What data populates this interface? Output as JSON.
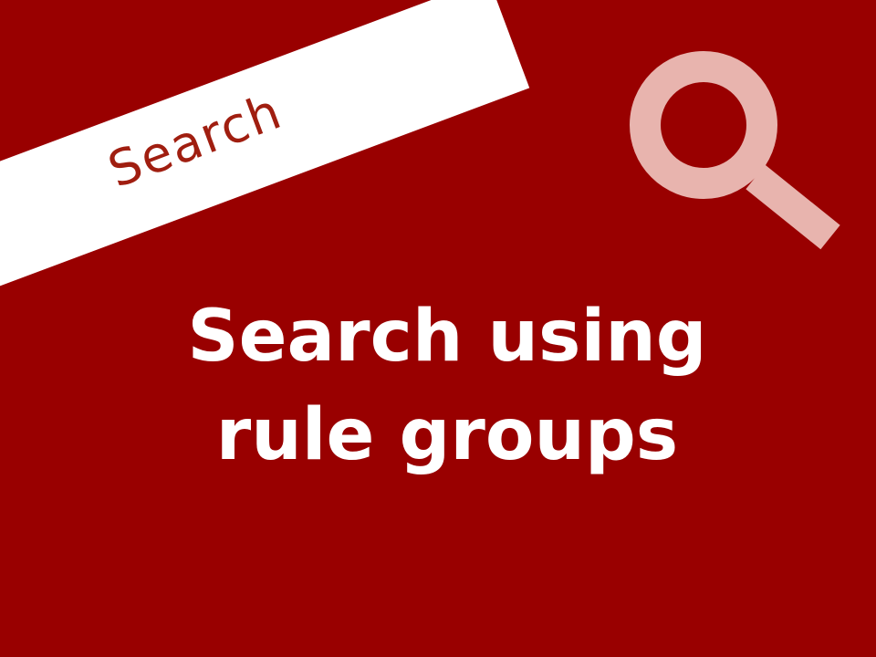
{
  "slide": {
    "banner_label": "Search",
    "title_line_1": "Search using",
    "title_line_2": "rule groups",
    "icon": "magnifier-icon",
    "colors": {
      "background": "#990000",
      "banner": "#ffffff",
      "banner_text": "#a01e10",
      "title_text": "#ffffff",
      "icon": "#e8b4ae"
    }
  }
}
